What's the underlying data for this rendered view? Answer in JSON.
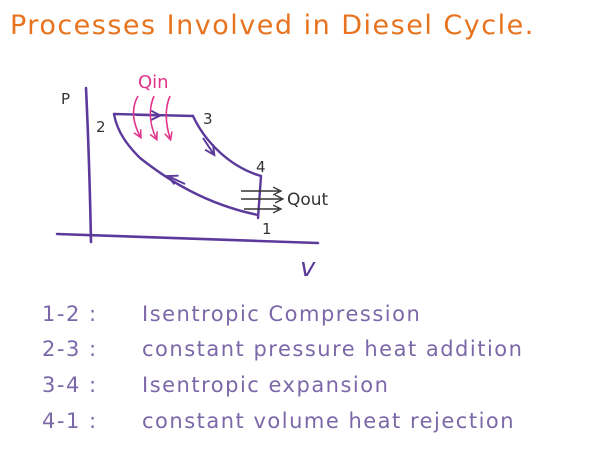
{
  "title": "Processes Involved in Diesel Cycle.",
  "colors": {
    "title": "#E8731F",
    "diagram": "#5B3A9B",
    "heat_in": "#E0338A",
    "text": "#7B68A8"
  },
  "diagram": {
    "axis_p": "P",
    "axis_v": "v",
    "points": [
      "1",
      "2",
      "3",
      "4"
    ],
    "heat_in_label": "Qin",
    "heat_out_label": "Qout"
  },
  "processes": [
    {
      "step": "1-2 :",
      "description": "Isentropic   Compression"
    },
    {
      "step": "2-3 :",
      "description": "constant pressure heat addition"
    },
    {
      "step": "3-4 :",
      "description": "Isentropic   expansion"
    },
    {
      "step": "4-1 :",
      "description": "constant volume   heat   rejection"
    }
  ]
}
